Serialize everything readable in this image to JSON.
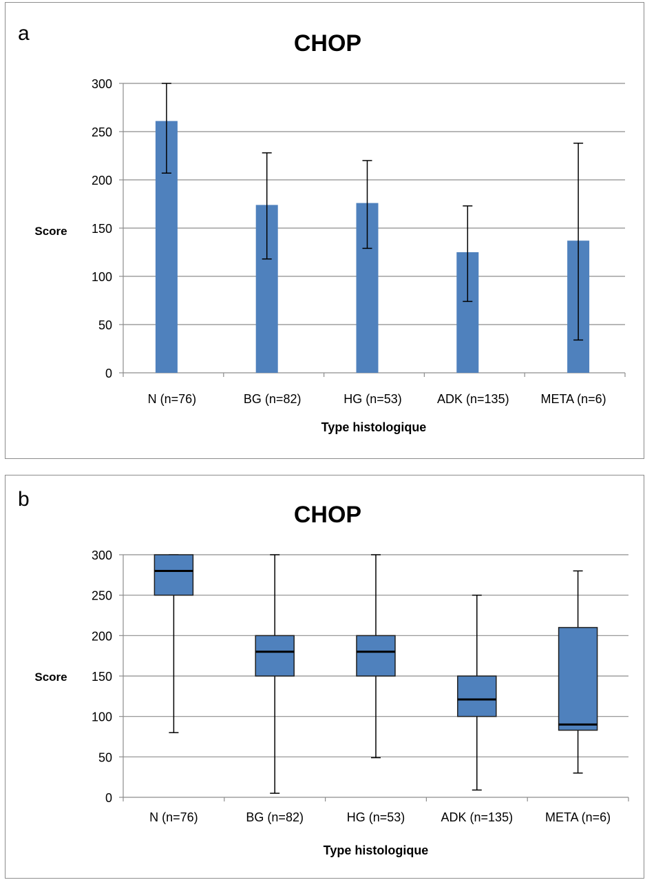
{
  "chart_data": [
    {
      "panel": "a",
      "type": "bar",
      "title": "CHOP",
      "xlabel": "Type histologique",
      "ylabel": "Score",
      "ylim": [
        0,
        300
      ],
      "yticks": [
        0,
        50,
        100,
        150,
        200,
        250,
        300
      ],
      "grid": true,
      "bar_color": "#4f81bd",
      "categories": [
        "N (n=76)",
        "BG (n=82)",
        "HG (n=53)",
        "ADK (n=135)",
        "META (n=6)"
      ],
      "values": [
        261,
        174,
        176,
        125,
        137
      ],
      "error_low": [
        207,
        118,
        129,
        74,
        34
      ],
      "error_high": [
        300,
        228,
        220,
        173,
        238
      ]
    },
    {
      "panel": "b",
      "type": "box",
      "title": "CHOP",
      "xlabel": "Type histologique",
      "ylabel": "Score",
      "ylim": [
        0,
        300
      ],
      "yticks": [
        0,
        50,
        100,
        150,
        200,
        250,
        300
      ],
      "grid": true,
      "box_color": "#4f81bd",
      "categories": [
        "N (n=76)",
        "BG (n=82)",
        "HG (n=53)",
        "ADK (n=135)",
        "META (n=6)"
      ],
      "min": [
        80,
        5,
        49,
        9,
        30
      ],
      "q1": [
        250,
        150,
        150,
        100,
        83
      ],
      "median": [
        280,
        180,
        180,
        121,
        90
      ],
      "q3": [
        300,
        200,
        200,
        150,
        210
      ],
      "max": [
        300,
        300,
        300,
        250,
        280
      ]
    }
  ]
}
